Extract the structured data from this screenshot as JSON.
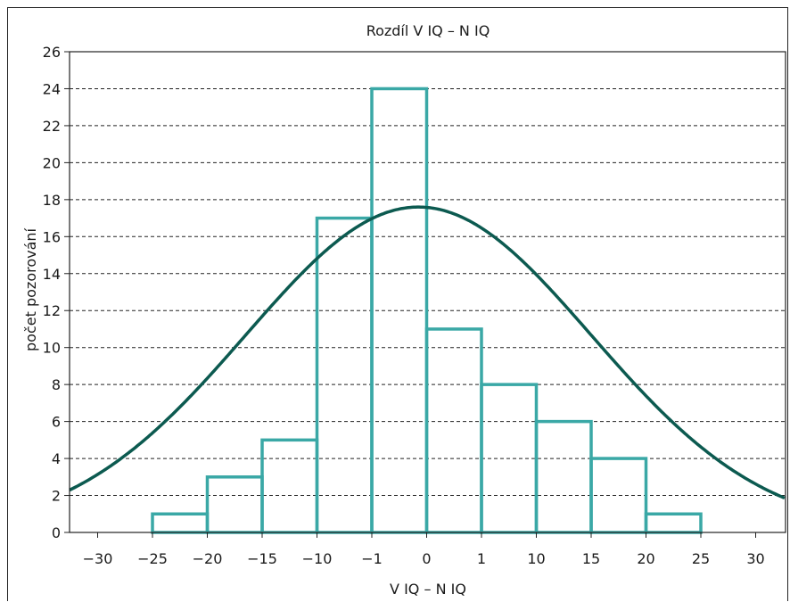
{
  "chart_data": {
    "type": "histogram",
    "title": "Rozdíl V IQ – N IQ",
    "xlabel": "V IQ – N IQ",
    "ylabel": "počet pozorování",
    "ylim": [
      0,
      26
    ],
    "y_ticks": [
      0,
      2,
      4,
      6,
      8,
      10,
      12,
      14,
      16,
      18,
      20,
      22,
      24,
      26
    ],
    "x_tick_labels": [
      "−30",
      "−25",
      "−20",
      "−15",
      "−10",
      "−1",
      "0",
      "1",
      "10",
      "15",
      "20",
      "25",
      "30"
    ],
    "bins": [
      {
        "from_label": "−25",
        "to_label": "−20",
        "count": 1
      },
      {
        "from_label": "−20",
        "to_label": "−15",
        "count": 3
      },
      {
        "from_label": "−15",
        "to_label": "−10",
        "count": 5
      },
      {
        "from_label": "−10",
        "to_label": "−1",
        "count": 17
      },
      {
        "from_label": "−1",
        "to_label": "0",
        "count": 24
      },
      {
        "from_label": "0",
        "to_label": "1",
        "count": 11
      },
      {
        "from_label": "1",
        "to_label": "10",
        "count": 8
      },
      {
        "from_label": "10",
        "to_label": "15",
        "count": 6
      },
      {
        "from_label": "15",
        "to_label": "20",
        "count": 4
      },
      {
        "from_label": "20",
        "to_label": "25",
        "count": 1
      }
    ],
    "normal_curve": {
      "peak": 17.6,
      "mean_position": -0.15,
      "sd_positions": 3.15
    },
    "grid": {
      "horizontal_dashed": true
    },
    "colors": {
      "bars": "#3aa8a6",
      "curve": "#0c5a50",
      "grid": "#222222"
    }
  }
}
